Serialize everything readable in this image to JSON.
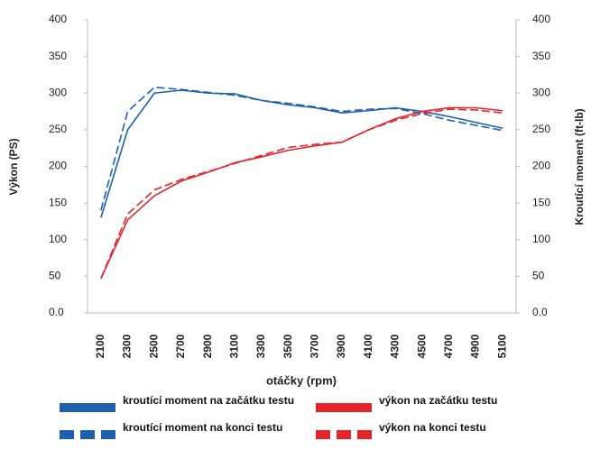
{
  "chart_data": {
    "type": "line",
    "x_label": "otáčky (rpm)",
    "y_label": "Výkon (PS)",
    "y2_label": "Kroutící moment (ft-lb)",
    "categories": [
      "2100",
      "2300",
      "2500",
      "2700",
      "2900",
      "3100",
      "3300",
      "3500",
      "3700",
      "3900",
      "4100",
      "4300",
      "4500",
      "4700",
      "4900",
      "5100"
    ],
    "ylim": [
      0,
      400
    ],
    "yticks": [
      {
        "value": 0,
        "label": "0.0"
      },
      50,
      100,
      150,
      200,
      250,
      300,
      350,
      400
    ],
    "y2lim": [
      0,
      400
    ],
    "y2ticks": [
      {
        "value": 0,
        "label": "0.0"
      },
      50,
      100,
      150,
      200,
      250,
      300,
      350,
      400
    ],
    "grid": false,
    "legend": "bottom",
    "series": [
      {
        "name": "kroutící moment na začátku testu",
        "color": "#1f5fb0",
        "dashed": false,
        "axis": "y2",
        "values": [
          130,
          250,
          300,
          304,
          300,
          299,
          290,
          284,
          280,
          273,
          276,
          280,
          275,
          268,
          260,
          252
        ]
      },
      {
        "name": "výkon na začátku testu",
        "color": "#e8222b",
        "dashed": false,
        "axis": "y",
        "values": [
          47,
          127,
          160,
          180,
          192,
          205,
          213,
          222,
          228,
          233,
          250,
          265,
          275,
          280,
          280,
          276
        ]
      },
      {
        "name": "kroutící moment na konci testu",
        "color": "#1f5fb0",
        "dashed": true,
        "axis": "y2",
        "values": [
          140,
          275,
          308,
          305,
          301,
          297,
          290,
          286,
          281,
          275,
          278,
          279,
          272,
          263,
          256,
          249
        ]
      },
      {
        "name": "výkon na konci testu",
        "color": "#e8222b",
        "dashed": true,
        "axis": "y",
        "values": [
          47,
          135,
          168,
          182,
          193,
          204,
          215,
          226,
          230,
          233,
          250,
          263,
          272,
          278,
          277,
          273
        ]
      }
    ]
  }
}
